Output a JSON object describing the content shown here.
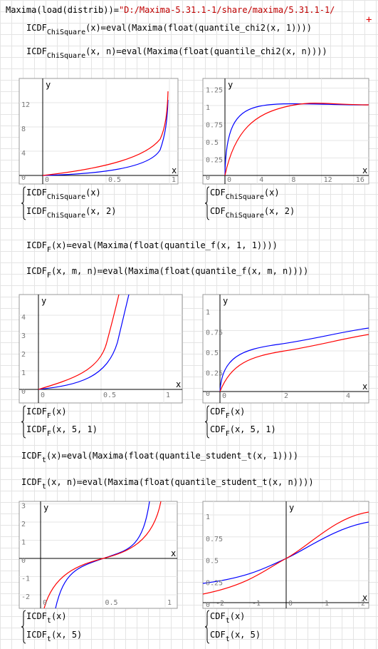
{
  "header": {
    "command": "Maxima(load(distrib))=",
    "result": "\"D:/Maxima-5.31.1-1/share/maxima/5.31.1-1/",
    "marker": "+"
  },
  "blocks": [
    {
      "definitions": [
        {
          "name": "ICDF",
          "sub": "ChiSquare",
          "rest": "(x)≔eval(Maxima(float(quantile_chi2(x, 1))))"
        },
        {
          "name": "ICDF",
          "sub": "ChiSquare",
          "rest": "(x, n)≔eval(Maxima(float(quantile_chi2(x, n))))"
        }
      ],
      "plots": [
        {
          "x_axis": "x",
          "y_axis": "y",
          "xticks": [
            0,
            0.5,
            1
          ],
          "yticks": [
            0,
            4,
            8,
            12
          ],
          "legend": [
            {
              "name": "ICDF",
              "sub": "ChiSquare",
              "args": "(x)",
              "color": "#0000ff"
            },
            {
              "name": "ICDF",
              "sub": "ChiSquare",
              "args": "(x, 2)",
              "color": "#ff0000"
            }
          ]
        },
        {
          "x_axis": "x",
          "y_axis": "y",
          "xticks": [
            0,
            4,
            8,
            12,
            16
          ],
          "yticks": [
            0,
            0.25,
            0.5,
            0.75,
            1,
            1.25
          ],
          "legend": [
            {
              "name": "CDF",
              "sub": "ChiSquare",
              "args": "(x)",
              "color": "#0000ff"
            },
            {
              "name": "CDF",
              "sub": "ChiSquare",
              "args": "(x, 2)",
              "color": "#ff0000"
            }
          ]
        }
      ]
    },
    {
      "definitions": [
        {
          "name": "ICDF",
          "sub": "F",
          "rest": "(x)≔eval(Maxima(float(quantile_f(x, 1, 1))))"
        },
        {
          "name": "ICDF",
          "sub": "F",
          "rest": "(x, m, n)≔eval(Maxima(float(quantile_f(x, m, n))))"
        }
      ],
      "plots": [
        {
          "x_axis": "x",
          "y_axis": "y",
          "xticks": [
            0,
            0.5,
            1
          ],
          "yticks": [
            0,
            1,
            2,
            3,
            4
          ],
          "legend": [
            {
              "name": "ICDF",
              "sub": "F",
              "args": "(x)",
              "color": "#0000ff"
            },
            {
              "name": "ICDF",
              "sub": "F",
              "args": "(x, 5, 1)",
              "color": "#ff0000"
            }
          ]
        },
        {
          "x_axis": "x",
          "y_axis": "y",
          "xticks": [
            0,
            2,
            4
          ],
          "yticks": [
            0,
            0.25,
            0.5,
            0.75,
            1
          ],
          "legend": [
            {
              "name": "CDF",
              "sub": "F",
              "args": "(x)",
              "color": "#0000ff"
            },
            {
              "name": "CDF",
              "sub": "F",
              "args": "(x, 5, 1)",
              "color": "#ff0000"
            }
          ]
        }
      ]
    },
    {
      "definitions": [
        {
          "name": "ICDF",
          "sub": "t",
          "rest": "(x)≔eval(Maxima(float(quantile_student_t(x, 1))))"
        },
        {
          "name": "ICDF",
          "sub": "t",
          "rest": "(x, n)≔eval(Maxima(float(quantile_student_t(x, n))))"
        }
      ],
      "plots": [
        {
          "x_axis": "x",
          "y_axis": "y",
          "xticks": [
            0,
            0.5,
            1
          ],
          "yticks": [
            -2,
            -1,
            0,
            1,
            2,
            3
          ],
          "legend": [
            {
              "name": "ICDF",
              "sub": "t",
              "args": "(x)",
              "color": "#0000ff"
            },
            {
              "name": "ICDF",
              "sub": "t",
              "args": "(x, 5)",
              "color": "#ff0000"
            }
          ]
        },
        {
          "x_axis": "x",
          "y_axis": "y",
          "xticks": [
            -2,
            -1,
            0,
            1,
            2
          ],
          "yticks": [
            0,
            0.25,
            0.5,
            0.75,
            1
          ],
          "legend": [
            {
              "name": "CDF",
              "sub": "t",
              "args": "(x)",
              "color": "#0000ff"
            },
            {
              "name": "CDF",
              "sub": "t",
              "args": "(x, 5)",
              "color": "#ff0000"
            }
          ]
        }
      ]
    }
  ]
}
